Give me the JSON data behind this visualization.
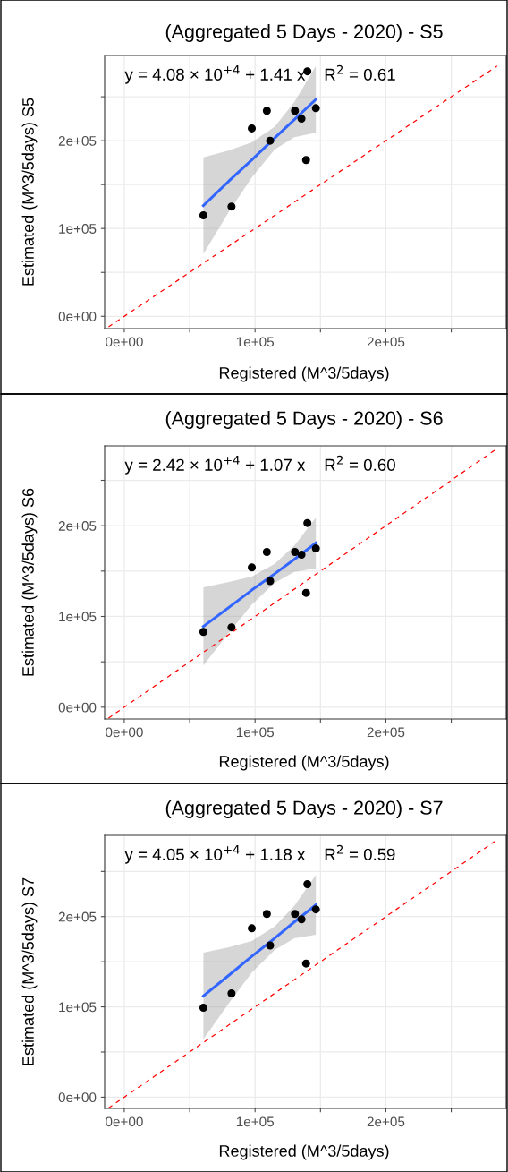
{
  "chart_data": [
    {
      "type": "scatter",
      "title": "(Aggregated 5 Days - 2020) - S5",
      "xlabel": "Registered (M^3/5days)",
      "ylabel": "Estimated (M^3/5days) S5",
      "annotations": [
        "y = 4.08 × 10$^{+4}$ + 1.41 x    R$^{2}$ = 0.61"
      ],
      "series": [
        {
          "color": "#000000",
          "marker": "circle",
          "x": [
            60500,
            82000,
            97500,
            109000,
            111500,
            130500,
            135500,
            139000,
            140000,
            146500
          ],
          "values": [
            115000,
            125000,
            214000,
            234000,
            200000,
            234000,
            225000,
            178000,
            279000,
            237000
          ]
        },
        {
          "type": "line",
          "color": "#3366ff",
          "marker": "none",
          "x": [
            60500,
            80000,
            97500,
            115000,
            130000,
            146500
          ],
          "values": [
            126000,
            154000,
            178000,
            203000,
            224000,
            247000
          ],
          "lower": [
            71000,
            119000,
            158000,
            190000,
            204000,
            209000
          ],
          "upper": [
            181000,
            189000,
            198000,
            216000,
            244000,
            285000
          ]
        },
        {
          "type": "line",
          "color": "#ff0000",
          "marker": "none",
          "line_style": "dashed",
          "x": [
            -12000,
            285000
          ],
          "values": [
            -12000,
            285000
          ]
        }
      ],
      "xlim": [
        -15000,
        292000
      ],
      "ylim": [
        -14000,
        297000
      ],
      "xticks": [
        {
          "value": 0,
          "label": "0e+00"
        },
        {
          "value": 50000,
          "label": null
        },
        {
          "value": 100000,
          "label": "1e+05"
        },
        {
          "value": 150000,
          "label": null
        },
        {
          "value": 200000,
          "label": "2e+05"
        },
        {
          "value": 250000,
          "label": null
        }
      ],
      "yticks": [
        {
          "value": 0,
          "label": "0e+00"
        },
        {
          "value": 50000,
          "label": null
        },
        {
          "value": 100000,
          "label": "1e+05"
        },
        {
          "value": 150000,
          "label": null
        },
        {
          "value": 200000,
          "label": "2e+05"
        },
        {
          "value": 250000,
          "label": null
        }
      ],
      "grid": true,
      "legend": false
    },
    {
      "type": "scatter",
      "title": "(Aggregated 5 Days - 2020) - S6",
      "xlabel": "Registered (M^3/5days)",
      "ylabel": "Estimated (M^3/5days) S6",
      "annotations": [
        "y = 2.42 × 10$^{+4}$ + 1.07 x    R$^{2}$ = 0.60"
      ],
      "series": [
        {
          "color": "#000000",
          "marker": "circle",
          "x": [
            60500,
            82000,
            97500,
            109000,
            111500,
            130500,
            135500,
            139000,
            140000,
            146500
          ],
          "values": [
            83000,
            88000,
            154000,
            171000,
            139000,
            171000,
            168000,
            126000,
            203000,
            175000
          ]
        },
        {
          "type": "line",
          "color": "#3366ff",
          "marker": "none",
          "x": [
            60500,
            80000,
            97500,
            115000,
            130000,
            146500
          ],
          "values": [
            89000,
            110000,
            129000,
            147000,
            163000,
            181000
          ],
          "lower": [
            46000,
            82000,
            113000,
            137000,
            149000,
            153000
          ],
          "upper": [
            132000,
            138000,
            144000,
            158000,
            178000,
            209000
          ]
        },
        {
          "type": "line",
          "color": "#ff0000",
          "marker": "none",
          "line_style": "dashed",
          "x": [
            -12000,
            285000
          ],
          "values": [
            -12000,
            285000
          ]
        }
      ],
      "xlim": [
        -15000,
        292000
      ],
      "ylim": [
        -13000,
        288000
      ],
      "xticks": [
        {
          "value": 0,
          "label": "0e+00"
        },
        {
          "value": 50000,
          "label": null
        },
        {
          "value": 100000,
          "label": "1e+05"
        },
        {
          "value": 150000,
          "label": null
        },
        {
          "value": 200000,
          "label": "2e+05"
        },
        {
          "value": 250000,
          "label": null
        }
      ],
      "yticks": [
        {
          "value": 0,
          "label": "0e+00"
        },
        {
          "value": 50000,
          "label": null
        },
        {
          "value": 100000,
          "label": "1e+05"
        },
        {
          "value": 150000,
          "label": null
        },
        {
          "value": 200000,
          "label": "2e+05"
        },
        {
          "value": 250000,
          "label": null
        }
      ],
      "grid": true,
      "legend": false
    },
    {
      "type": "scatter",
      "title": "(Aggregated 5 Days - 2020) - S7",
      "xlabel": "Registered (M^3/5days)",
      "ylabel": "Estimated (M^3/5days) S7",
      "annotations": [
        "y = 4.05 × 10$^{+4}$ + 1.18 x    R$^{2}$ = 0.59"
      ],
      "series": [
        {
          "color": "#000000",
          "marker": "circle",
          "x": [
            60500,
            82000,
            97500,
            109000,
            111500,
            130500,
            135500,
            139000,
            140000,
            146500
          ],
          "values": [
            99000,
            115000,
            187000,
            203000,
            168000,
            203000,
            197000,
            148000,
            236000,
            208000
          ]
        },
        {
          "type": "line",
          "color": "#3366ff",
          "marker": "none",
          "x": [
            60500,
            80000,
            97500,
            115000,
            130000,
            146500
          ],
          "values": [
            112000,
            135000,
            156000,
            176000,
            194000,
            213000
          ],
          "lower": [
            64000,
            104000,
            138000,
            163000,
            176000,
            180000
          ],
          "upper": [
            160000,
            166000,
            173000,
            189000,
            212000,
            246000
          ]
        },
        {
          "type": "line",
          "color": "#ff0000",
          "marker": "none",
          "line_style": "dashed",
          "x": [
            -12000,
            285000
          ],
          "values": [
            -12000,
            285000
          ]
        }
      ],
      "xlim": [
        -15000,
        292000
      ],
      "ylim": [
        -12500,
        290000
      ],
      "xticks": [
        {
          "value": 0,
          "label": "0e+00"
        },
        {
          "value": 50000,
          "label": null
        },
        {
          "value": 100000,
          "label": "1e+05"
        },
        {
          "value": 150000,
          "label": null
        },
        {
          "value": 200000,
          "label": "2e+05"
        },
        {
          "value": 250000,
          "label": null
        }
      ],
      "yticks": [
        {
          "value": 0,
          "label": "0e+00"
        },
        {
          "value": 50000,
          "label": null
        },
        {
          "value": 100000,
          "label": "1e+05"
        },
        {
          "value": 150000,
          "label": null
        },
        {
          "value": 200000,
          "label": "2e+05"
        },
        {
          "value": 250000,
          "label": null
        }
      ],
      "grid": true,
      "legend": false
    }
  ]
}
